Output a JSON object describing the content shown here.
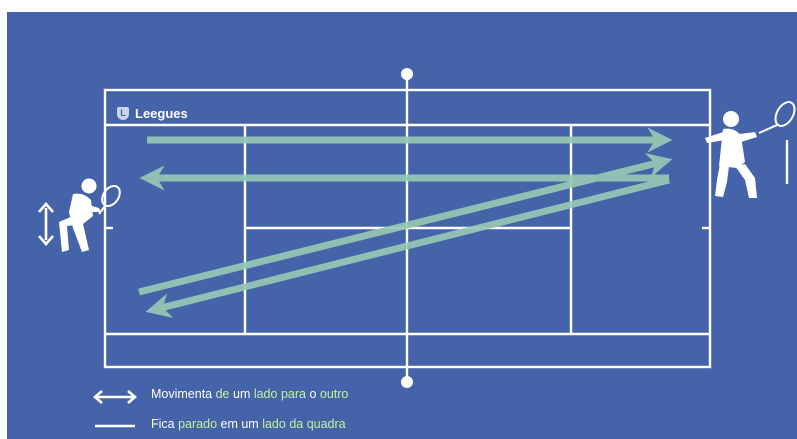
{
  "brand": {
    "name": "Leegues",
    "badge_letter": "L"
  },
  "legend": {
    "moves": {
      "parts": [
        "Movimenta ",
        "de",
        " um ",
        "lado",
        " ",
        "para",
        " o ",
        "outro"
      ],
      "icon": "double-arrow-icon"
    },
    "stays": {
      "parts": [
        "Fica ",
        "parado",
        " em um ",
        "lado",
        " ",
        "da quadra"
      ],
      "icon": "line-icon"
    }
  },
  "colors": {
    "background": "#4563a8",
    "court_lines": "#ffffff",
    "shot_arrows": "#96c8b4",
    "highlight_text": "#c6f0a0"
  },
  "players": {
    "left": {
      "icon": "tennis-player-crouching-icon",
      "indicator": "double-arrow-vertical-icon"
    },
    "right": {
      "icon": "tennis-player-swinging-icon",
      "indicator": "line-vertical-icon"
    }
  }
}
